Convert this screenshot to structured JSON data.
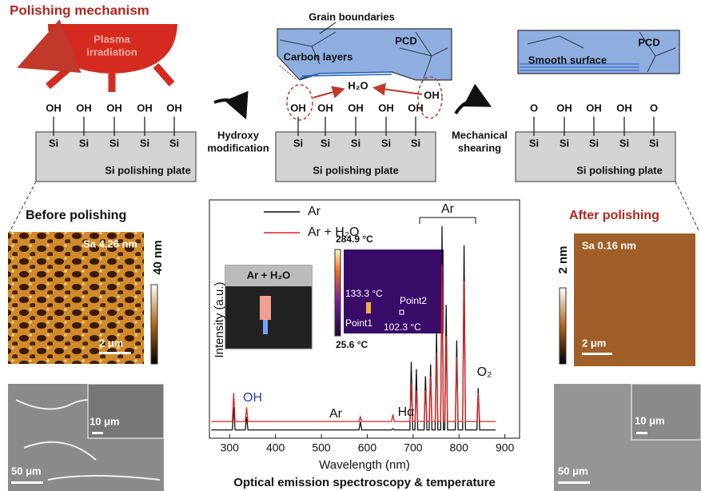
{
  "title": "Polishing mechanism",
  "plasma_label": [
    "Plasma",
    "irradiation"
  ],
  "step1": {
    "groups": [
      "OH",
      "OH",
      "OH",
      "OH",
      "OH"
    ],
    "atoms": [
      "Si",
      "Si",
      "Si",
      "Si",
      "Si"
    ],
    "plate": "Si polishing plate"
  },
  "arrow1": [
    "Hydroxy",
    "modification"
  ],
  "step2": {
    "grain": "Grain boundaries",
    "pcd": "PCD",
    "carbon": "Carbon layers",
    "water": "H₂O",
    "free_group": "OH",
    "groups": [
      "OH",
      "OH",
      "OH",
      "OH",
      "OH"
    ],
    "atoms": [
      "Si",
      "Si",
      "Si",
      "Si",
      "Si"
    ],
    "plate": "Si polishing plate"
  },
  "arrow2": [
    "Mechanical",
    "shearing"
  ],
  "step3": {
    "pcd": "PCD",
    "smooth": "Smooth surface",
    "groups": [
      "O",
      "OH",
      "OH",
      "OH",
      "O"
    ],
    "atoms": [
      "Si",
      "Si",
      "Si",
      "Si",
      "Si"
    ],
    "plate": "Si polishing plate"
  },
  "before": {
    "title": "Before polishing",
    "sa": "Sa 4.26 nm",
    "scale": "40 nm",
    "afm_bar": "2 μm",
    "inset_bar": "10 μm",
    "sem_bar": "50 μm"
  },
  "after": {
    "title": "After polishing",
    "sa": "Sa 0.16 nm",
    "scale": "2 nm",
    "afm_bar": "2 μm",
    "inset_bar": "10 μm",
    "sem_bar": "50 μm"
  },
  "insets": {
    "photo": "Ar + H₂O",
    "tmax": "284.9 °C",
    "tmin": "25.6 °C",
    "t1": "133.3 °C",
    "p2": "Point2",
    "p1": "Point1",
    "t2": "102.3 °C"
  },
  "caption": "Optical emission spectroscopy & temperature",
  "chart_data": {
    "type": "line",
    "xlabel": "Wavelength (nm)",
    "ylabel": "Intensity (a.u.)",
    "annotations": [
      "OH",
      "Ar",
      "Hα",
      "Ar",
      "O₂"
    ],
    "xlim": [
      256,
      932
    ],
    "ylim": [
      0,
      100
    ],
    "xticks": [
      300,
      400,
      500,
      600,
      700,
      800,
      900
    ],
    "x": [
      260,
      306,
      309,
      312,
      334,
      337,
      340,
      582,
      585,
      588,
      653,
      656,
      659,
      693,
      696,
      699,
      704,
      707,
      710,
      724,
      727,
      730,
      735,
      738,
      741,
      748,
      751,
      754,
      760,
      763,
      766,
      769,
      772,
      775,
      792,
      795,
      798,
      808,
      811,
      814,
      839,
      842,
      845,
      880
    ],
    "series": [
      {
        "name": "Ar",
        "color": "#111111",
        "values": [
          3.5,
          3.5,
          13,
          3.5,
          3.5,
          9,
          3.5,
          3.5,
          7,
          3.5,
          3.5,
          4,
          3.5,
          3.5,
          32,
          3.5,
          3.5,
          29,
          3.5,
          3.5,
          26,
          3.5,
          3.5,
          31,
          3.5,
          3.5,
          45,
          3.5,
          3.5,
          89,
          3.5,
          3.5,
          56,
          3.5,
          3.5,
          41,
          3.5,
          3.5,
          81,
          3.5,
          3.5,
          21,
          3.5,
          3.5
        ]
      },
      {
        "name": "Ar + H₂O",
        "color": "#e02020",
        "values": [
          7,
          7,
          19,
          7,
          7,
          13,
          7,
          7,
          9,
          7,
          7,
          10,
          7,
          7,
          23,
          7,
          7,
          20,
          7,
          7,
          20,
          7,
          7,
          26,
          7,
          7,
          36,
          7,
          7,
          73,
          7,
          7,
          43,
          7,
          7,
          34,
          7,
          7,
          66,
          7,
          7,
          19,
          7,
          7
        ]
      }
    ]
  }
}
